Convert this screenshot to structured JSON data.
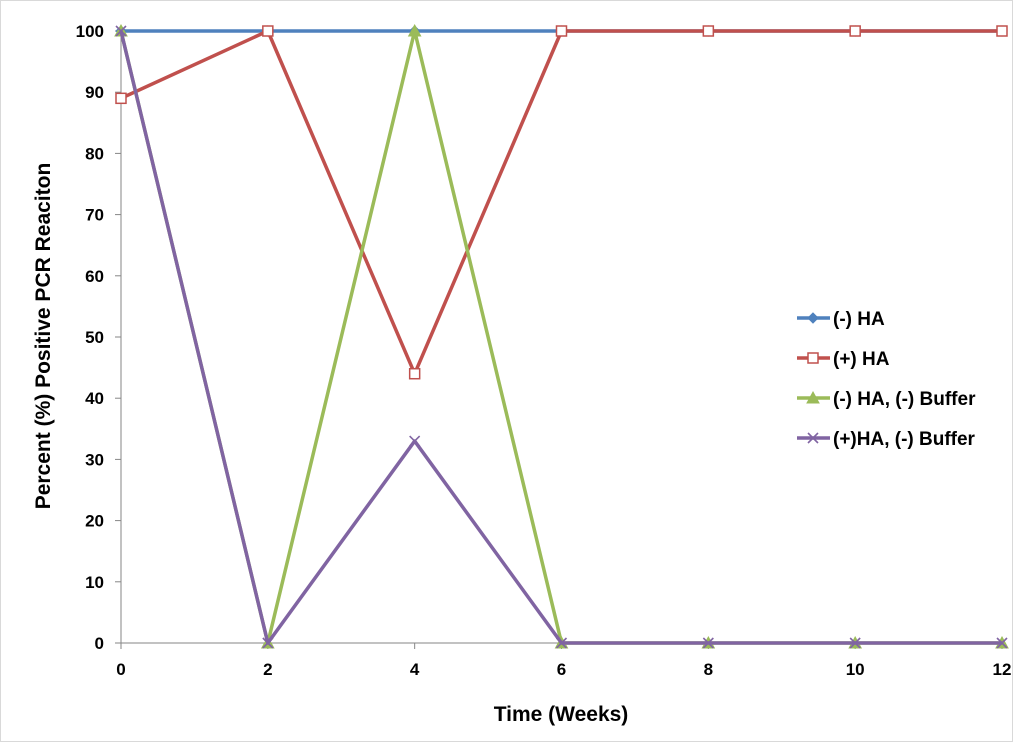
{
  "chart_data": {
    "type": "line",
    "title": "",
    "xlabel": "Time (Weeks)",
    "ylabel": "Percent (%) Positive PCR Reaciton",
    "x": [
      0,
      2,
      4,
      6,
      8,
      10,
      12
    ],
    "xlim": [
      0,
      12
    ],
    "ylim": [
      0,
      100
    ],
    "x_ticks": [
      "0",
      "2",
      "4",
      "6",
      "8",
      "10",
      "12"
    ],
    "y_ticks": [
      "0",
      "10",
      "20",
      "30",
      "40",
      "50",
      "60",
      "70",
      "80",
      "90",
      "100"
    ],
    "grid": false,
    "legend_position": "right",
    "series": [
      {
        "name": "(-) HA",
        "color": "#4F81BD",
        "marker": "diamond",
        "values": [
          100,
          100,
          100,
          100,
          100,
          100,
          100
        ]
      },
      {
        "name": "(+) HA",
        "color": "#C0504D",
        "marker": "square-open",
        "values": [
          89,
          100,
          44,
          100,
          100,
          100,
          100
        ]
      },
      {
        "name": "(-) HA, (-) Buffer",
        "color": "#9BBB59",
        "marker": "triangle",
        "values": [
          100,
          0,
          100,
          0,
          0,
          0,
          0
        ]
      },
      {
        "name": "(+)HA, (-) Buffer",
        "color": "#8064A2",
        "marker": "x",
        "values": [
          100,
          0,
          33,
          0,
          0,
          0,
          0
        ]
      }
    ]
  }
}
